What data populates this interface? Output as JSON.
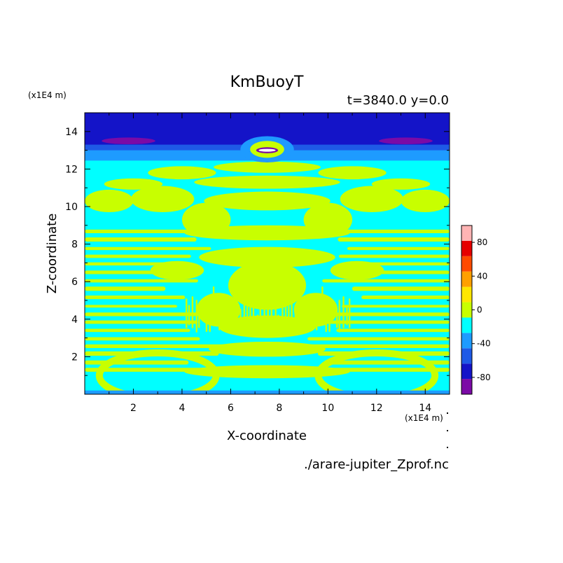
{
  "chart_data": {
    "type": "heatmap",
    "title": "KmBuoyT",
    "subtitle": "t=3840.0 y=0.0",
    "xlabel": "X-coordinate",
    "ylabel": "Z-coordinate",
    "x_units": "(x1E4 m)",
    "y_units": "(x1E4 m)",
    "source_file": "./arare-jupiter_Zprof.nc",
    "xlim": [
      0,
      15
    ],
    "ylim": [
      0,
      15
    ],
    "x_ticks": [
      2,
      4,
      6,
      8,
      10,
      12,
      14
    ],
    "y_ticks": [
      2,
      4,
      6,
      8,
      10,
      12,
      14
    ],
    "colorbar": {
      "levels": [
        -100,
        -80,
        -60,
        -40,
        -20,
        0,
        20,
        40,
        60,
        80,
        100
      ],
      "tick_labels": [
        "80",
        "40",
        "0",
        "-40",
        "-80"
      ],
      "tick_values": [
        80,
        40,
        0,
        -40,
        -80
      ],
      "colors": [
        "#7b0aa6",
        "#1414c8",
        "#1e5ae6",
        "#1e9bff",
        "#00ffff",
        "#c8ff00",
        "#ffe600",
        "#ffa000",
        "#ff4b00",
        "#e60000",
        "#ffb4b4"
      ]
    },
    "structure": {
      "top_layer": {
        "z": [
          13.0,
          15.0
        ],
        "value_range": [
          -80,
          -60
        ]
      },
      "upper_layer": {
        "z": [
          12.5,
          13.0
        ],
        "value_range": [
          -60,
          -40
        ]
      },
      "inner_layers": {
        "z": [
          0.2,
          12.5
        ],
        "values": "alternating bands in ranges [-20,0] and [0,20]"
      },
      "min_spots": [
        {
          "x": 1.8,
          "z": 13.5,
          "value_range": [
            -100,
            -80
          ]
        },
        {
          "x": 13.2,
          "z": 13.5,
          "value_range": [
            -100,
            -80
          ]
        },
        {
          "x": 7.5,
          "z": 13.0,
          "value_range": [
            -100,
            -80
          ]
        }
      ],
      "bottom_boundary": {
        "z": [
          0.0,
          0.2
        ],
        "value_range": [
          -60,
          -40
        ]
      }
    }
  }
}
